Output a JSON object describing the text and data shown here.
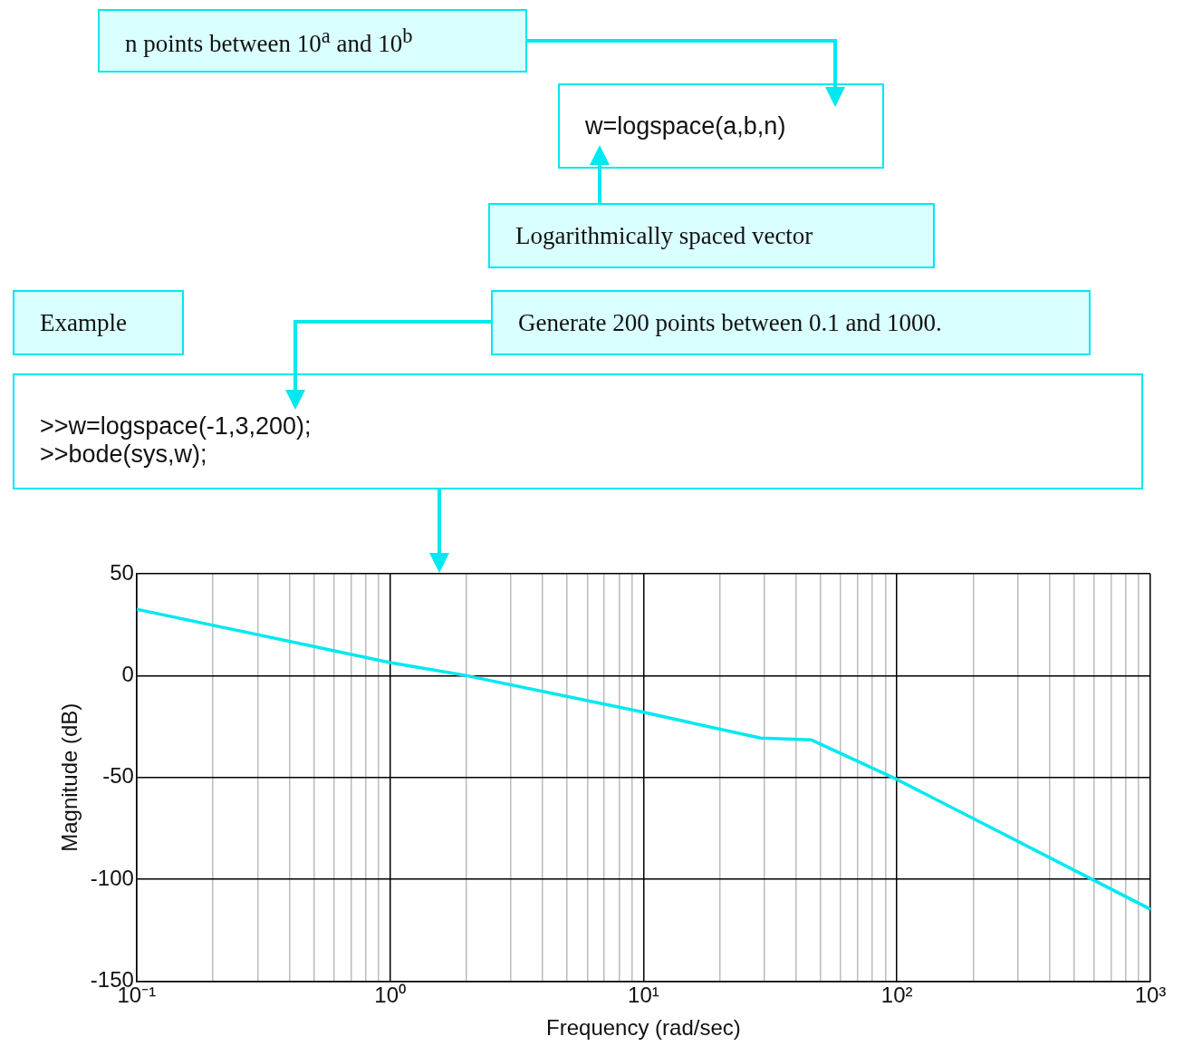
{
  "chart_data": {
    "type": "line",
    "xlabel": "Frequency (rad/sec)",
    "ylabel": "Magnitude (dB)",
    "annotations": [
      "n points between 10$^{a}$ and 10$^{b}$",
      "w=logspace(a,b,n)",
      "Logarithmically spaced vector",
      "Example",
      "Generate 200 points between 0.1 and 1000.",
      ">>w=logspace(-1,3,200);",
      ">>bode(sys,w);"
    ],
    "series": [
      {
        "color": "#00e8f0",
        "x": [
          0.1,
          1,
          2,
          10,
          29,
          46,
          100,
          1000
        ],
        "values": [
          32.6,
          6.4,
          0,
          -18,
          -30.7,
          -31.6,
          -51,
          -114.7
        ]
      }
    ],
    "log": "x",
    "xlim": [
      0.1,
      1000
    ],
    "xticks": [
      {
        "value": 0.1,
        "label": "10⁻¹"
      },
      {
        "value": 0.2,
        "label": null
      },
      {
        "value": 0.3,
        "label": null
      },
      {
        "value": 0.4,
        "label": null
      },
      {
        "value": 0.5,
        "label": null
      },
      {
        "value": 0.6,
        "label": null
      },
      {
        "value": 0.7,
        "label": null
      },
      {
        "value": 0.8,
        "label": null
      },
      {
        "value": 0.9,
        "label": null
      },
      {
        "value": 1,
        "label": "10⁰"
      },
      {
        "value": 2,
        "label": null
      },
      {
        "value": 3,
        "label": null
      },
      {
        "value": 4,
        "label": null
      },
      {
        "value": 5,
        "label": null
      },
      {
        "value": 6,
        "label": null
      },
      {
        "value": 7,
        "label": null
      },
      {
        "value": 8,
        "label": null
      },
      {
        "value": 9,
        "label": null
      },
      {
        "value": 10,
        "label": "10¹"
      },
      {
        "value": 20,
        "label": null
      },
      {
        "value": 30,
        "label": null
      },
      {
        "value": 40,
        "label": null
      },
      {
        "value": 50,
        "label": null
      },
      {
        "value": 60,
        "label": null
      },
      {
        "value": 70,
        "label": null
      },
      {
        "value": 80,
        "label": null
      },
      {
        "value": 90,
        "label": null
      },
      {
        "value": 100,
        "label": "10²"
      },
      {
        "value": 200,
        "label": null
      },
      {
        "value": 300,
        "label": null
      },
      {
        "value": 400,
        "label": null
      },
      {
        "value": 500,
        "label": null
      },
      {
        "value": 600,
        "label": null
      },
      {
        "value": 700,
        "label": null
      },
      {
        "value": 800,
        "label": null
      },
      {
        "value": 900,
        "label": null
      },
      {
        "value": 1000,
        "label": "10³"
      }
    ],
    "ylim": [
      -150,
      50
    ],
    "yticks": [
      -150,
      -100,
      -50,
      0,
      50
    ],
    "grid": true,
    "legend": false
  }
}
